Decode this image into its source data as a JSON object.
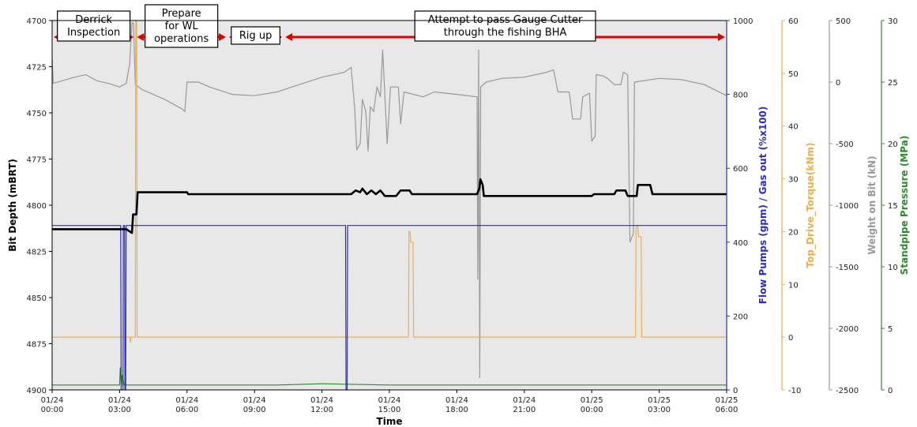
{
  "chart_data": {
    "type": "line",
    "xlabel": "Time",
    "x_ticks": [
      "01/24\n00:00",
      "01/24\n03:00",
      "01/24\n06:00",
      "01/24\n09:00",
      "01/24\n12:00",
      "01/24\n15:00",
      "01/24\n18:00",
      "01/24\n21:00",
      "01/25\n00:00",
      "01/25\n03:00",
      "01/25\n06:00"
    ],
    "xlim_hours": [
      0,
      30
    ],
    "axes": {
      "bit_depth": {
        "label": "Bit Depth (mBRT)",
        "ylim": [
          4900,
          4700
        ],
        "inverted": true,
        "ticks": [
          4700,
          4725,
          4750,
          4775,
          4800,
          4825,
          4850,
          4875,
          4900
        ],
        "color": "#000000"
      },
      "flow": {
        "label": "Flow Pumps (gpm) / Gas out (%x100)",
        "ylim": [
          0,
          1000
        ],
        "ticks": [
          0,
          200,
          400,
          600,
          800,
          1000
        ],
        "color": "#2b2bc8"
      },
      "torque": {
        "label": "Top_Drive_Torque(kNm)",
        "ylim": [
          -10,
          60
        ],
        "ticks": [
          -10,
          0,
          10,
          20,
          30,
          40,
          50,
          60
        ],
        "color": "#f0b040"
      },
      "wob": {
        "label": "Weight on Bit (kN)",
        "ylim": [
          -2500,
          500
        ],
        "ticks": [
          -2500,
          -2000,
          -1500,
          -1000,
          -500,
          0,
          500
        ],
        "color": "#999999"
      },
      "spp": {
        "label": "Standpipe Pressure (MPa)",
        "ylim": [
          0,
          30
        ],
        "ticks": [
          0,
          5,
          10,
          15,
          20,
          25,
          30
        ],
        "color": "#2e8b2e"
      }
    },
    "series": [
      {
        "name": "Bit Depth",
        "axis": "bit_depth",
        "color": "#000000",
        "points": [
          [
            0,
            4813
          ],
          [
            3.3,
            4813
          ],
          [
            3.55,
            4815
          ],
          [
            3.6,
            4805
          ],
          [
            3.75,
            4805
          ],
          [
            3.8,
            4793
          ],
          [
            6,
            4793
          ],
          [
            6.05,
            4794
          ],
          [
            13.3,
            4794
          ],
          [
            13.5,
            4792
          ],
          [
            13.7,
            4793
          ],
          [
            13.8,
            4791
          ],
          [
            14.0,
            4794
          ],
          [
            14.2,
            4792
          ],
          [
            14.4,
            4794
          ],
          [
            14.6,
            4792
          ],
          [
            14.8,
            4795
          ],
          [
            15.3,
            4795
          ],
          [
            15.5,
            4792
          ],
          [
            15.9,
            4792
          ],
          [
            16.0,
            4794
          ],
          [
            18.9,
            4794
          ],
          [
            19.0,
            4791
          ],
          [
            19.05,
            4786
          ],
          [
            19.15,
            4789
          ],
          [
            19.2,
            4795
          ],
          [
            24,
            4795
          ],
          [
            24.1,
            4794
          ],
          [
            25,
            4794
          ],
          [
            25.1,
            4792
          ],
          [
            25.5,
            4792
          ],
          [
            25.6,
            4795
          ],
          [
            26.0,
            4795
          ],
          [
            26.05,
            4789
          ],
          [
            26.6,
            4789
          ],
          [
            26.7,
            4794
          ],
          [
            30,
            4794
          ]
        ]
      },
      {
        "name": "Flow Pumps",
        "axis": "flow",
        "color": "#2b2bc8",
        "points": [
          [
            0,
            445
          ],
          [
            3.05,
            445
          ],
          [
            3.07,
            0
          ],
          [
            3.15,
            0
          ],
          [
            3.17,
            445
          ],
          [
            3.22,
            445
          ],
          [
            3.24,
            0
          ],
          [
            3.27,
            0
          ],
          [
            3.29,
            445
          ],
          [
            13.05,
            445
          ],
          [
            13.07,
            0
          ],
          [
            13.12,
            0
          ],
          [
            13.14,
            445
          ],
          [
            30,
            445
          ]
        ]
      },
      {
        "name": "Top Drive Torque",
        "axis": "torque",
        "color": "#f0b040",
        "points": [
          [
            0,
            0
          ],
          [
            3.45,
            0
          ],
          [
            3.48,
            -1
          ],
          [
            3.52,
            0
          ],
          [
            3.7,
            0
          ],
          [
            3.72,
            60
          ],
          [
            3.76,
            60
          ],
          [
            3.78,
            0
          ],
          [
            15.85,
            0
          ],
          [
            15.87,
            20
          ],
          [
            15.92,
            20
          ],
          [
            15.95,
            18
          ],
          [
            16.05,
            18
          ],
          [
            16.08,
            0
          ],
          [
            25.95,
            0
          ],
          [
            25.97,
            21
          ],
          [
            26.05,
            21
          ],
          [
            26.08,
            19
          ],
          [
            26.2,
            19
          ],
          [
            26.22,
            0
          ],
          [
            30,
            0
          ]
        ]
      },
      {
        "name": "Weight on Bit",
        "axis": "wob",
        "color": "#999999",
        "points": [
          [
            0,
            200
          ],
          [
            0.05,
            -10
          ],
          [
            1,
            40
          ],
          [
            1.5,
            60
          ],
          [
            2,
            10
          ],
          [
            2.5,
            -10
          ],
          [
            3,
            -40
          ],
          [
            3.3,
            -10
          ],
          [
            3.45,
            150
          ],
          [
            3.55,
            480
          ],
          [
            3.62,
            480
          ],
          [
            3.7,
            -20
          ],
          [
            4,
            -60
          ],
          [
            5,
            -140
          ],
          [
            5.8,
            -220
          ],
          [
            5.9,
            -240
          ],
          [
            6,
            0
          ],
          [
            6.5,
            0
          ],
          [
            7,
            -40
          ],
          [
            8,
            -100
          ],
          [
            9,
            -110
          ],
          [
            10,
            -80
          ],
          [
            11,
            -20
          ],
          [
            12,
            40
          ],
          [
            13,
            80
          ],
          [
            13.3,
            120
          ],
          [
            13.45,
            -200
          ],
          [
            13.55,
            -550
          ],
          [
            13.7,
            -500
          ],
          [
            13.8,
            -140
          ],
          [
            13.95,
            -240
          ],
          [
            14.05,
            -560
          ],
          [
            14.15,
            -200
          ],
          [
            14.3,
            -240
          ],
          [
            14.45,
            -40
          ],
          [
            14.6,
            -120
          ],
          [
            14.7,
            260
          ],
          [
            14.9,
            -500
          ],
          [
            15.05,
            -40
          ],
          [
            15.4,
            -40
          ],
          [
            15.5,
            -340
          ],
          [
            15.65,
            -80
          ],
          [
            16.5,
            -120
          ],
          [
            17,
            -80
          ],
          [
            18,
            -100
          ],
          [
            18.9,
            -120
          ],
          [
            18.93,
            -1600
          ],
          [
            18.97,
            260
          ],
          [
            19.02,
            -2400
          ],
          [
            19.06,
            -40
          ],
          [
            19.3,
            0
          ],
          [
            20,
            30
          ],
          [
            21,
            40
          ],
          [
            22,
            80
          ],
          [
            22.3,
            100
          ],
          [
            22.5,
            -80
          ],
          [
            23,
            -80
          ],
          [
            23.15,
            -300
          ],
          [
            23.5,
            -300
          ],
          [
            23.6,
            -120
          ],
          [
            23.9,
            -90
          ],
          [
            24.0,
            -480
          ],
          [
            24.15,
            -440
          ],
          [
            24.2,
            60
          ],
          [
            24.5,
            50
          ],
          [
            24.7,
            30
          ],
          [
            25,
            -20
          ],
          [
            25.3,
            -20
          ],
          [
            25.4,
            80
          ],
          [
            25.6,
            60
          ],
          [
            25.7,
            -1300
          ],
          [
            25.85,
            -1230
          ],
          [
            25.9,
            0
          ],
          [
            27,
            30
          ],
          [
            28,
            20
          ],
          [
            29,
            -20
          ],
          [
            30,
            -110
          ]
        ]
      },
      {
        "name": "Standpipe Pressure",
        "axis": "spp",
        "color": "#2e8b2e",
        "points": [
          [
            0,
            0.4
          ],
          [
            3.0,
            0.4
          ],
          [
            3.03,
            1.8
          ],
          [
            3.08,
            0.3
          ],
          [
            3.12,
            1.2
          ],
          [
            3.2,
            0.4
          ],
          [
            10,
            0.4
          ],
          [
            12,
            0.5
          ],
          [
            15,
            0.4
          ],
          [
            20,
            0.4
          ],
          [
            25,
            0.4
          ],
          [
            30,
            0.4
          ]
        ]
      }
    ],
    "annotations": [
      {
        "text": "Derrick\nInspection",
        "start": 0,
        "end": 3.7
      },
      {
        "text": "Prepare\nfor WL\noperations",
        "start": 3.7,
        "end": 7.8
      },
      {
        "text": "Rig up",
        "start": 7.8,
        "end": 10.3
      },
      {
        "text": "Attempt to pass Gauge Cutter\nthrough the fishing BHA",
        "start": 10.3,
        "end": 30
      }
    ],
    "grid": false,
    "legend": "none"
  }
}
